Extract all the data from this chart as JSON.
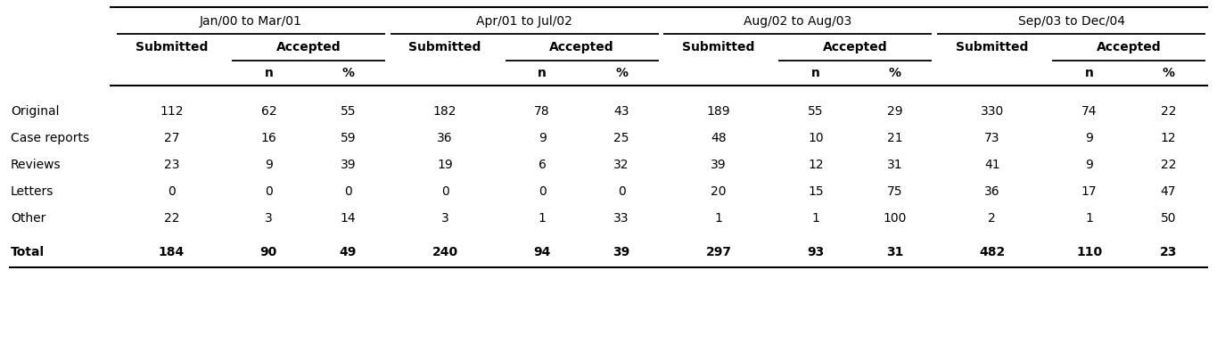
{
  "periods": [
    "Jan/00 to Mar/01",
    "Apr/01 to Jul/02",
    "Aug/02 to Aug/03",
    "Sep/03 to Dec/04"
  ],
  "row_labels": [
    "Original",
    "Case reports",
    "Reviews",
    "Letters",
    "Other",
    "Total"
  ],
  "data": [
    [
      "112",
      "62",
      "55",
      "182",
      "78",
      "43",
      "189",
      "55",
      "29",
      "330",
      "74",
      "22"
    ],
    [
      "27",
      "16",
      "59",
      "36",
      "9",
      "25",
      "48",
      "10",
      "21",
      "73",
      "9",
      "12"
    ],
    [
      "23",
      "9",
      "39",
      "19",
      "6",
      "32",
      "39",
      "12",
      "31",
      "41",
      "9",
      "22"
    ],
    [
      "0",
      "0",
      "0",
      "0",
      "0",
      "0",
      "20",
      "15",
      "75",
      "36",
      "17",
      "47"
    ],
    [
      "22",
      "3",
      "14",
      "3",
      "1",
      "33",
      "1",
      "1",
      "100",
      "2",
      "1",
      "50"
    ],
    [
      "184",
      "90",
      "49",
      "240",
      "94",
      "39",
      "297",
      "93",
      "31",
      "482",
      "110",
      "23"
    ]
  ],
  "bg_color": "#ffffff",
  "fs_period": 10,
  "fs_header": 10,
  "fs_data": 10,
  "fig_w": 13.65,
  "fig_h": 3.95,
  "dpi": 100
}
